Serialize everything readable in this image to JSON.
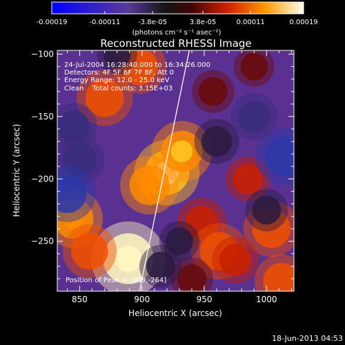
{
  "chart_data": {
    "type": "heatmap",
    "title": "Reconstructed RHESSI Image",
    "xlabel": "Heliocentric X (arcsec)",
    "ylabel": "Heliocentric Y (arcsec)",
    "xlim": [
      832,
      1022
    ],
    "ylim": [
      -290,
      -97
    ],
    "xticks": [
      850,
      900,
      950,
      1000
    ],
    "yticks": [
      -100,
      -150,
      -200,
      -250
    ],
    "annotations": [
      "24-Jul-2004 16:28:40.000 to 16:34:26.000",
      "Detectors: 4F 5F 6F 7F 8F, Att 0",
      "Energy Range: 12.0 - 25.0 keV",
      "Clean    Total counts: 3.15E+03"
    ],
    "peak_label": "Position of Peak = [889,-264]",
    "peak": {
      "x": 889,
      "y": -264
    },
    "limb_line": {
      "x": [
        938,
        898
      ],
      "y": [
        -97,
        -290
      ]
    },
    "colorbar": {
      "ticks": [
        "-0.00019",
        "-0.00011",
        "-3.8e-05",
        "3.8e-05",
        "0.00011",
        "0.00019"
      ],
      "tick_values": [
        -0.00019,
        -0.00011,
        -3.8e-05,
        3.8e-05,
        0.00011,
        0.00019
      ],
      "range": [
        -0.00019,
        0.00019
      ],
      "unit_label": "(photons cm⁻² s⁻¹ asec⁻²)"
    },
    "blobs": [
      {
        "x": 889,
        "y": -264,
        "value": 0.00019
      },
      {
        "x": 920,
        "y": -195,
        "value": 0.00015
      },
      {
        "x": 932,
        "y": -178,
        "value": 0.00013
      },
      {
        "x": 906,
        "y": -205,
        "value": 0.00012
      },
      {
        "x": 870,
        "y": -135,
        "value": 0.00011
      },
      {
        "x": 898,
        "y": -110,
        "value": 0.0001
      },
      {
        "x": 845,
        "y": -232,
        "value": 0.00012
      },
      {
        "x": 858,
        "y": -258,
        "value": 0.0001
      },
      {
        "x": 948,
        "y": -235,
        "value": 8e-05
      },
      {
        "x": 962,
        "y": -258,
        "value": 0.00011
      },
      {
        "x": 1004,
        "y": -240,
        "value": 0.00011
      },
      {
        "x": 1012,
        "y": -282,
        "value": 0.0001
      },
      {
        "x": 985,
        "y": -200,
        "value": 6e-05
      },
      {
        "x": 975,
        "y": -265,
        "value": 7e-05
      },
      {
        "x": 940,
        "y": -280,
        "value": 5e-05
      },
      {
        "x": 957,
        "y": -130,
        "value": 5e-05
      },
      {
        "x": 990,
        "y": -110,
        "value": 4e-05
      },
      {
        "x": 850,
        "y": -185,
        "value": -8e-05
      },
      {
        "x": 840,
        "y": -212,
        "value": -0.00011
      },
      {
        "x": 1015,
        "y": -182,
        "value": -0.00012
      },
      {
        "x": 960,
        "y": -170,
        "value": -6e-05
      },
      {
        "x": 990,
        "y": -150,
        "value": -7e-05
      },
      {
        "x": 845,
        "y": -158,
        "value": -7e-05
      },
      {
        "x": 1000,
        "y": -225,
        "value": -5e-05
      },
      {
        "x": 930,
        "y": -250,
        "value": -4e-05
      },
      {
        "x": 915,
        "y": -270,
        "value": -5e-05
      },
      {
        "x": 880,
        "y": -100,
        "value": -4e-05
      }
    ]
  },
  "footer_date": "18-Jun-2013 04:53"
}
